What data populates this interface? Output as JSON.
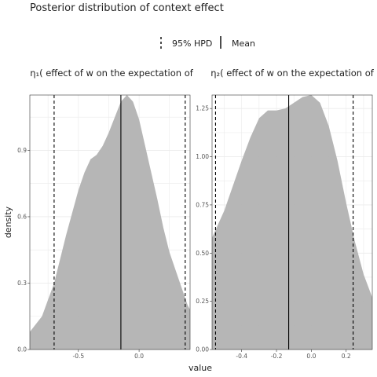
{
  "figure": {
    "title": "Posterior distribution of context effect",
    "xlabel": "value",
    "ylabel": "density",
    "legend": {
      "hpd_label": "95% HPD",
      "mean_label": "Mean",
      "placement": "top"
    },
    "colors": {
      "density_fill": "#b2b2b2",
      "grid": "#ebebeb",
      "panel_border": "#333333",
      "line": "#000000"
    }
  },
  "chart_data": [
    {
      "type": "area",
      "panel_label": "η₁( effect of w on the expectation of",
      "xlim": [
        -0.9,
        0.42
      ],
      "ylim": [
        0,
        1.15
      ],
      "x_ticks": [
        -0.5,
        0.0
      ],
      "x_tick_labels": [
        "-0.5",
        "0.0"
      ],
      "y_ticks": [
        0,
        0.3,
        0.6,
        0.9
      ],
      "y_tick_labels": [
        "0.0",
        "0.3",
        "0.6",
        "0.9"
      ],
      "grid": true,
      "mean": -0.15,
      "hpd": [
        -0.7,
        0.38
      ],
      "x": [
        -0.9,
        -0.8,
        -0.7,
        -0.6,
        -0.5,
        -0.45,
        -0.4,
        -0.35,
        -0.3,
        -0.25,
        -0.2,
        -0.15,
        -0.1,
        -0.05,
        0.0,
        0.05,
        0.1,
        0.15,
        0.2,
        0.25,
        0.3,
        0.35,
        0.4,
        0.42
      ],
      "y": [
        0.08,
        0.15,
        0.3,
        0.52,
        0.72,
        0.8,
        0.86,
        0.88,
        0.92,
        0.98,
        1.05,
        1.12,
        1.15,
        1.12,
        1.04,
        0.92,
        0.8,
        0.68,
        0.55,
        0.44,
        0.36,
        0.28,
        0.2,
        0.18
      ]
    },
    {
      "type": "area",
      "panel_label": "η₂( effect of w on the expectation of",
      "xlim": [
        -0.57,
        0.35
      ],
      "ylim": [
        0,
        1.32
      ],
      "x_ticks": [
        -0.4,
        -0.2,
        0.0,
        0.2
      ],
      "x_tick_labels": [
        "-0.4",
        "-0.2",
        "0.0",
        "0.2"
      ],
      "y_ticks": [
        0,
        0.25,
        0.5,
        0.75,
        1.0,
        1.25
      ],
      "y_tick_labels": [
        "0.00",
        "0.25",
        "0.50",
        "0.75",
        "1.00",
        "1.25"
      ],
      "grid": true,
      "mean": -0.13,
      "hpd": [
        -0.55,
        0.24
      ],
      "x": [
        -0.57,
        -0.5,
        -0.45,
        -0.4,
        -0.35,
        -0.3,
        -0.25,
        -0.2,
        -0.15,
        -0.1,
        -0.05,
        0.0,
        0.05,
        0.1,
        0.15,
        0.2,
        0.25,
        0.3,
        0.35
      ],
      "y": [
        0.58,
        0.72,
        0.85,
        0.98,
        1.1,
        1.2,
        1.24,
        1.24,
        1.25,
        1.28,
        1.31,
        1.32,
        1.28,
        1.16,
        0.98,
        0.76,
        0.56,
        0.39,
        0.27
      ]
    }
  ]
}
